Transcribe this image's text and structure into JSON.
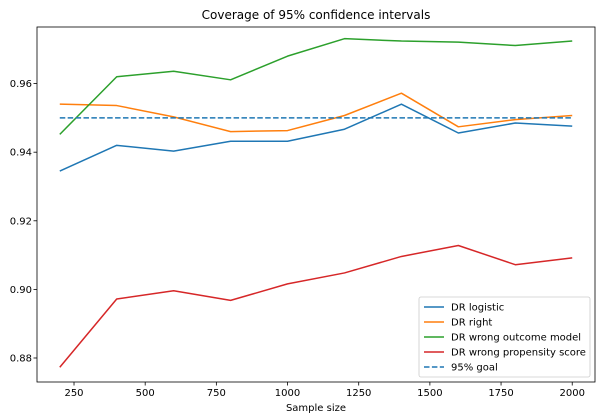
{
  "chart_data": {
    "type": "line",
    "title": "Coverage of 95% confidence intervals",
    "xlabel": "Sample size",
    "ylabel": "",
    "xlim": [
      120,
      2080
    ],
    "ylim": [
      0.873,
      0.9765
    ],
    "x_ticks": [
      250,
      500,
      750,
      1000,
      1250,
      1500,
      1750,
      2000
    ],
    "x_tick_labels": [
      "250",
      "500",
      "750",
      "1000",
      "1250",
      "1500",
      "1750",
      "2000"
    ],
    "y_ticks": [
      0.88,
      0.9,
      0.92,
      0.94,
      0.96
    ],
    "y_tick_labels": [
      "0.88",
      "0.90",
      "0.92",
      "0.94",
      "0.96"
    ],
    "x": [
      200,
      400,
      600,
      800,
      1000,
      1200,
      1400,
      1600,
      1800,
      2000
    ],
    "series": [
      {
        "name": "DR logistic",
        "color": "#1f77b4",
        "dash": false,
        "values": [
          0.9345,
          0.942,
          0.9403,
          0.9432,
          0.9432,
          0.9467,
          0.954,
          0.9456,
          0.9485,
          0.9476
        ]
      },
      {
        "name": "DR right",
        "color": "#ff7f0e",
        "dash": false,
        "values": [
          0.954,
          0.9536,
          0.9503,
          0.946,
          0.9463,
          0.9507,
          0.9572,
          0.9474,
          0.9495,
          0.9507
        ]
      },
      {
        "name": "DR wrong outcome model",
        "color": "#2ca02c",
        "dash": false,
        "values": [
          0.9452,
          0.962,
          0.9636,
          0.9611,
          0.968,
          0.9731,
          0.9724,
          0.9721,
          0.9711,
          0.9724
        ]
      },
      {
        "name": "DR wrong propensity score",
        "color": "#d62728",
        "dash": false,
        "values": [
          0.8773,
          0.8972,
          0.8996,
          0.8968,
          0.9016,
          0.9048,
          0.9096,
          0.9128,
          0.9072,
          0.9092
        ]
      },
      {
        "name": "95% goal",
        "color": "#1f77b4",
        "dash": true,
        "values": [
          0.95,
          0.95,
          0.95,
          0.95,
          0.95,
          0.95,
          0.95,
          0.95,
          0.95,
          0.95
        ]
      }
    ],
    "grid": false,
    "legend_position": "bottom-right"
  }
}
